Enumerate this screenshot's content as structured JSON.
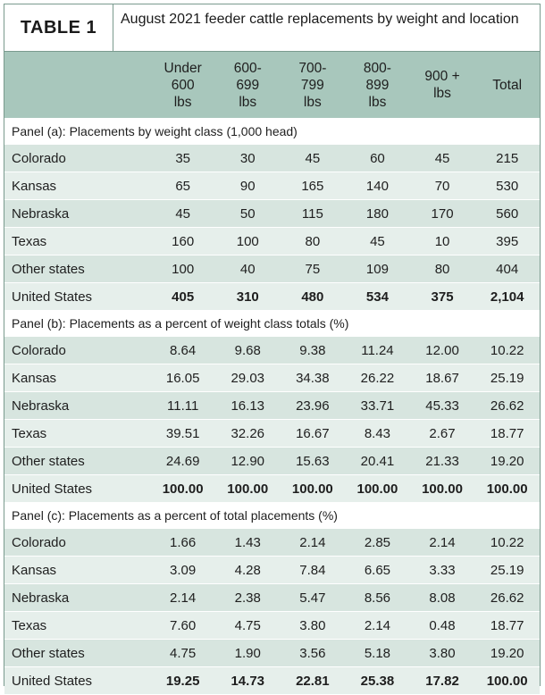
{
  "title": {
    "label": "TABLE 1",
    "text": "August 2021 feeder cattle replacements by weight and location"
  },
  "columns": [
    [
      "Under",
      "600",
      "lbs"
    ],
    [
      "600-",
      "699",
      "lbs"
    ],
    [
      "700-",
      "799",
      "lbs"
    ],
    [
      "800-",
      "899",
      "lbs"
    ],
    [
      "900 +",
      "lbs"
    ],
    [
      "Total"
    ]
  ],
  "panels": [
    {
      "title": "Panel (a): Placements by weight class (1,000 head)",
      "rows": [
        {
          "state": "Colorado",
          "values": [
            "35",
            "30",
            "45",
            "60",
            "45",
            "215"
          ]
        },
        {
          "state": "Kansas",
          "values": [
            "65",
            "90",
            "165",
            "140",
            "70",
            "530"
          ]
        },
        {
          "state": "Nebraska",
          "values": [
            "45",
            "50",
            "115",
            "180",
            "170",
            "560"
          ]
        },
        {
          "state": "Texas",
          "values": [
            "160",
            "100",
            "80",
            "45",
            "10",
            "395"
          ]
        },
        {
          "state": "Other states",
          "values": [
            "100",
            "40",
            "75",
            "109",
            "80",
            "404"
          ]
        },
        {
          "state": "United States",
          "values": [
            "405",
            "310",
            "480",
            "534",
            "375",
            "2,104"
          ],
          "total": true
        }
      ]
    },
    {
      "title": "Panel (b): Placements as a percent of weight class totals (%)",
      "rows": [
        {
          "state": "Colorado",
          "values": [
            "8.64",
            "9.68",
            "9.38",
            "11.24",
            "12.00",
            "10.22"
          ]
        },
        {
          "state": "Kansas",
          "values": [
            "16.05",
            "29.03",
            "34.38",
            "26.22",
            "18.67",
            "25.19"
          ]
        },
        {
          "state": "Nebraska",
          "values": [
            "11.11",
            "16.13",
            "23.96",
            "33.71",
            "45.33",
            "26.62"
          ]
        },
        {
          "state": "Texas",
          "values": [
            "39.51",
            "32.26",
            "16.67",
            "8.43",
            "2.67",
            "18.77"
          ]
        },
        {
          "state": "Other states",
          "values": [
            "24.69",
            "12.90",
            "15.63",
            "20.41",
            "21.33",
            "19.20"
          ]
        },
        {
          "state": "United States",
          "values": [
            "100.00",
            "100.00",
            "100.00",
            "100.00",
            "100.00",
            "100.00"
          ],
          "total": true
        }
      ]
    },
    {
      "title": "Panel (c): Placements as a percent of total placements (%)",
      "rows": [
        {
          "state": "Colorado",
          "values": [
            "1.66",
            "1.43",
            "2.14",
            "2.85",
            "2.14",
            "10.22"
          ]
        },
        {
          "state": "Kansas",
          "values": [
            "3.09",
            "4.28",
            "7.84",
            "6.65",
            "3.33",
            "25.19"
          ]
        },
        {
          "state": "Nebraska",
          "values": [
            "2.14",
            "2.38",
            "5.47",
            "8.56",
            "8.08",
            "26.62"
          ]
        },
        {
          "state": "Texas",
          "values": [
            "7.60",
            "4.75",
            "3.80",
            "2.14",
            "0.48",
            "18.77"
          ]
        },
        {
          "state": "Other states",
          "values": [
            "4.75",
            "1.90",
            "3.56",
            "5.18",
            "3.80",
            "19.20"
          ]
        },
        {
          "state": "United States",
          "values": [
            "19.25",
            "14.73",
            "22.81",
            "25.38",
            "17.82",
            "100.00"
          ],
          "total": true
        }
      ]
    }
  ]
}
